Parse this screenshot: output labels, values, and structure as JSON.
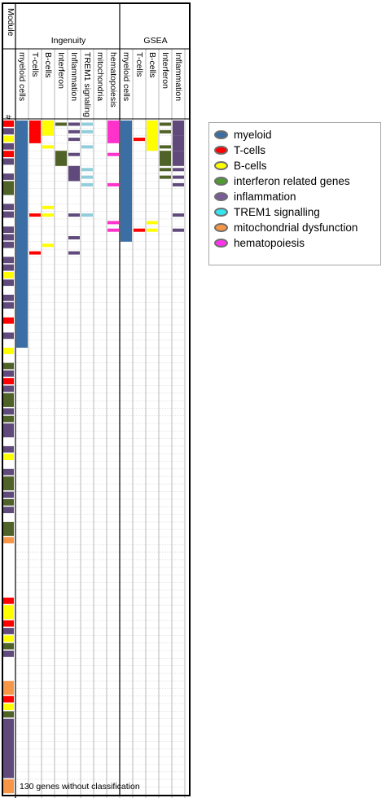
{
  "chart_data": {
    "type": "heatmap",
    "row_count": 90,
    "group_header_title": "Module",
    "index_header": "#",
    "groups": [
      {
        "name": "Ingenuity",
        "columns": [
          "myeloid cells",
          "T-cells",
          "B-cells",
          "Interferon",
          "Inflammation",
          "TREM1 signaling",
          "mitochondria",
          "hematopoiesis"
        ]
      },
      {
        "name": "GSEA",
        "columns": [
          "myeloid cells",
          "T-cells",
          "B-cells",
          "Interferon",
          "Inflammation"
        ]
      }
    ],
    "footer": "130 genes without classification",
    "colors": {
      "myeloid": "#3a6ea5",
      "T-cells": "#ff0000",
      "B-cells": "#ffff00",
      "interferon": "#4f6228",
      "inflammation": "#604a7b",
      "TREM1": "#92cddc",
      "mitochondrial": "#f79646",
      "hematopoiesis": "#ff33cc"
    },
    "legend": [
      {
        "label": "myeloid",
        "key": "myeloid",
        "color": "#3a6ea5"
      },
      {
        "label": "T-cells",
        "key": "T-cells",
        "color": "#ff0000"
      },
      {
        "label": "B-cells",
        "key": "B-cells",
        "color": "#ffff00"
      },
      {
        "label": "interferon related genes",
        "key": "interferon",
        "color": "#4f9a33"
      },
      {
        "label": "inflammation",
        "key": "inflammation",
        "color": "#7a5c9c"
      },
      {
        "label": "TREM1 signalling",
        "key": "TREM1",
        "color": "#33e5ee"
      },
      {
        "label": "mitochondrial dysfunction",
        "key": "mitochondrial",
        "color": "#f79646"
      },
      {
        "label": "hematopoiesis",
        "key": "hematopoiesis",
        "color": "#ff33ee"
      }
    ],
    "module_stripe": [
      [
        0,
        0,
        "T-cells"
      ],
      [
        1,
        1,
        "inflammation"
      ],
      [
        2,
        2,
        "B-cells"
      ],
      [
        3,
        3,
        "inflammation"
      ],
      [
        4,
        4,
        "T-cells"
      ],
      [
        5,
        5,
        "inflammation"
      ],
      [
        7,
        7,
        "inflammation"
      ],
      [
        8,
        9,
        "interferon"
      ],
      [
        11,
        11,
        "inflammation"
      ],
      [
        12,
        12,
        "inflammation"
      ],
      [
        14,
        14,
        "inflammation"
      ],
      [
        15,
        15,
        "inflammation"
      ],
      [
        16,
        16,
        "inflammation"
      ],
      [
        18,
        18,
        "inflammation"
      ],
      [
        19,
        19,
        "inflammation"
      ],
      [
        20,
        20,
        "B-cells"
      ],
      [
        21,
        21,
        "inflammation"
      ],
      [
        23,
        23,
        "inflammation"
      ],
      [
        24,
        24,
        "inflammation"
      ],
      [
        26,
        26,
        "T-cells"
      ],
      [
        28,
        28,
        "inflammation"
      ],
      [
        30,
        30,
        "B-cells"
      ],
      [
        32,
        32,
        "interferon"
      ],
      [
        33,
        33,
        "inflammation"
      ],
      [
        34,
        34,
        "T-cells"
      ],
      [
        35,
        35,
        "inflammation"
      ],
      [
        36,
        37,
        "interferon"
      ],
      [
        38,
        38,
        "inflammation"
      ],
      [
        39,
        39,
        "interferon"
      ],
      [
        40,
        41,
        "inflammation"
      ],
      [
        43,
        43,
        "inflammation"
      ],
      [
        44,
        44,
        "B-cells"
      ],
      [
        46,
        46,
        "inflammation"
      ],
      [
        47,
        48,
        "interferon"
      ],
      [
        49,
        49,
        "inflammation"
      ],
      [
        50,
        50,
        "interferon"
      ],
      [
        51,
        51,
        "inflammation"
      ],
      [
        53,
        54,
        "interferon"
      ],
      [
        55,
        55,
        "mitochondrial"
      ],
      [
        63,
        63,
        "T-cells"
      ],
      [
        64,
        65,
        "B-cells"
      ],
      [
        66,
        66,
        "T-cells"
      ],
      [
        67,
        67,
        "inflammation"
      ],
      [
        68,
        68,
        "B-cells"
      ],
      [
        69,
        69,
        "interferon"
      ],
      [
        70,
        70,
        "inflammation"
      ],
      [
        74,
        75,
        "mitochondrial"
      ],
      [
        76,
        76,
        "T-cells"
      ],
      [
        77,
        77,
        "B-cells"
      ],
      [
        78,
        78,
        "interferon"
      ],
      [
        79,
        86,
        "inflammation"
      ],
      [
        87,
        88,
        "mitochondrial"
      ]
    ],
    "cells": [
      [
        0,
        0,
        29,
        "myeloid"
      ],
      [
        1,
        0,
        2,
        "T-cells"
      ],
      [
        1,
        12,
        12,
        "T-cells"
      ],
      [
        1,
        17,
        17,
        "T-cells"
      ],
      [
        2,
        0,
        1,
        "B-cells"
      ],
      [
        2,
        3,
        3,
        "B-cells"
      ],
      [
        2,
        11,
        11,
        "B-cells"
      ],
      [
        2,
        12,
        12,
        "B-cells"
      ],
      [
        2,
        16,
        16,
        "B-cells"
      ],
      [
        3,
        0,
        0,
        "interferon"
      ],
      [
        3,
        4,
        5,
        "interferon"
      ],
      [
        4,
        0,
        0,
        "inflammation"
      ],
      [
        4,
        1,
        1,
        "inflammation"
      ],
      [
        4,
        2,
        2,
        "inflammation"
      ],
      [
        4,
        4,
        4,
        "inflammation"
      ],
      [
        4,
        6,
        7,
        "inflammation"
      ],
      [
        4,
        12,
        12,
        "inflammation"
      ],
      [
        4,
        15,
        15,
        "inflammation"
      ],
      [
        4,
        17,
        17,
        "inflammation"
      ],
      [
        5,
        0,
        0,
        "TREM1"
      ],
      [
        5,
        1,
        1,
        "TREM1"
      ],
      [
        5,
        3,
        3,
        "TREM1"
      ],
      [
        5,
        6,
        6,
        "TREM1"
      ],
      [
        5,
        7,
        7,
        "TREM1"
      ],
      [
        5,
        8,
        8,
        "TREM1"
      ],
      [
        5,
        12,
        12,
        "TREM1"
      ],
      [
        7,
        0,
        2,
        "hematopoiesis"
      ],
      [
        7,
        4,
        4,
        "hematopoiesis"
      ],
      [
        7,
        8,
        8,
        "hematopoiesis"
      ],
      [
        7,
        13,
        13,
        "hematopoiesis"
      ],
      [
        7,
        14,
        14,
        "hematopoiesis"
      ],
      [
        8,
        0,
        15,
        "myeloid"
      ],
      [
        9,
        2,
        2,
        "T-cells"
      ],
      [
        9,
        14,
        14,
        "T-cells"
      ],
      [
        10,
        0,
        1,
        "B-cells"
      ],
      [
        10,
        2,
        3,
        "B-cells"
      ],
      [
        10,
        13,
        13,
        "B-cells"
      ],
      [
        10,
        14,
        14,
        "B-cells"
      ],
      [
        11,
        0,
        0,
        "interferon"
      ],
      [
        11,
        1,
        1,
        "interferon"
      ],
      [
        11,
        3,
        3,
        "interferon"
      ],
      [
        11,
        4,
        5,
        "interferon"
      ],
      [
        11,
        6,
        6,
        "interferon"
      ],
      [
        11,
        7,
        7,
        "interferon"
      ],
      [
        12,
        0,
        1,
        "inflammation"
      ],
      [
        12,
        2,
        3,
        "inflammation"
      ],
      [
        12,
        4,
        5,
        "inflammation"
      ],
      [
        12,
        6,
        6,
        "inflammation"
      ],
      [
        12,
        7,
        7,
        "inflammation"
      ],
      [
        12,
        8,
        8,
        "inflammation"
      ],
      [
        12,
        12,
        12,
        "inflammation"
      ],
      [
        12,
        14,
        14,
        "inflammation"
      ]
    ]
  }
}
